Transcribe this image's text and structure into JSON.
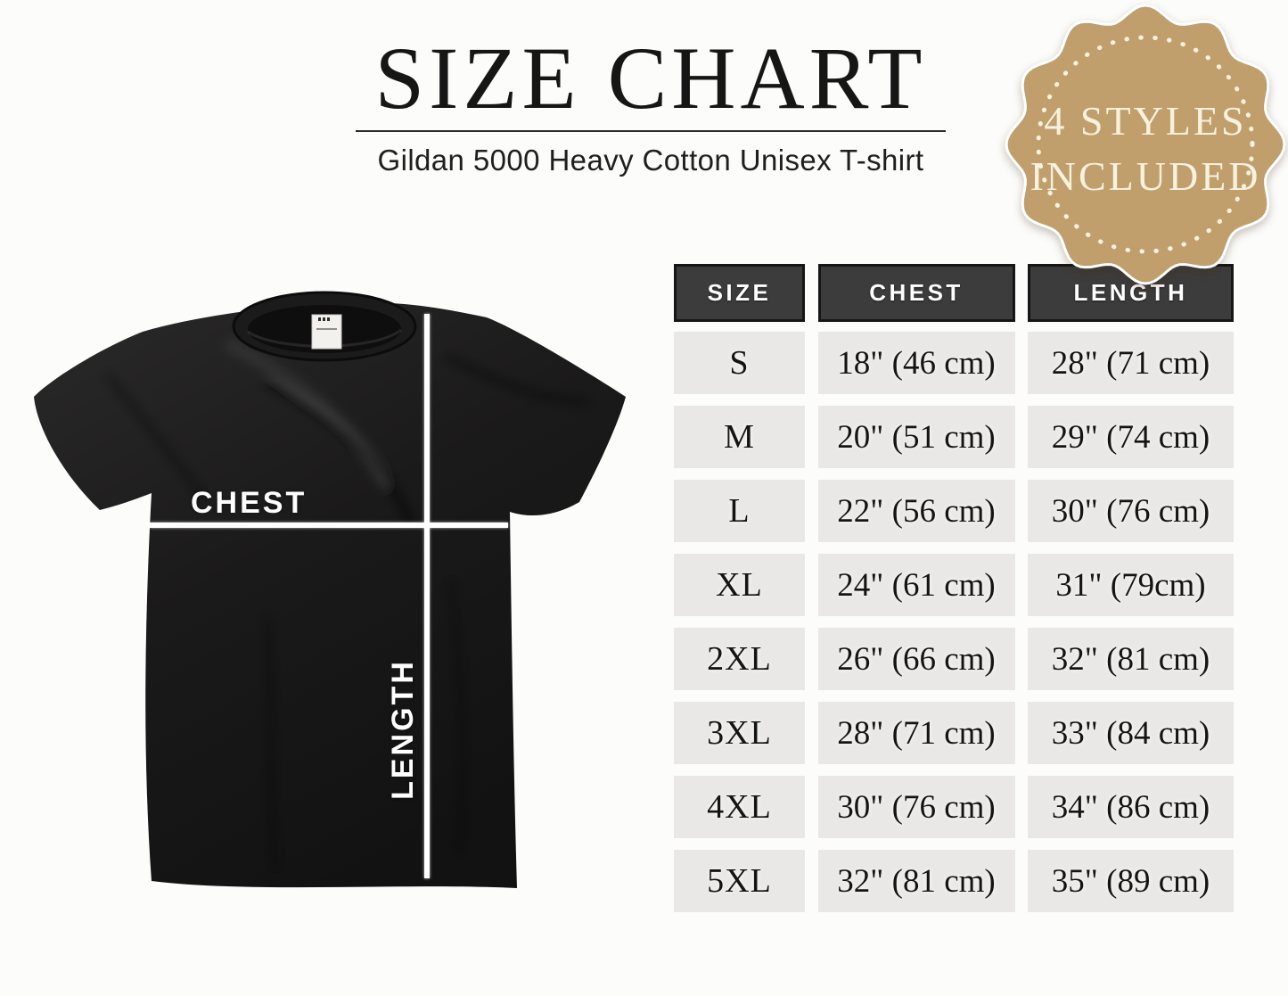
{
  "header": {
    "title": "SIZE CHART",
    "subtitle": "Gildan 5000 Heavy Cotton Unisex T-shirt"
  },
  "badge": {
    "line1": "4 STYLES",
    "line2": "INCLUDED",
    "bg_color": "#c19f6c",
    "dot_color": "#f7f1de",
    "text_color": "#f7f1de"
  },
  "shirt": {
    "chest_label": "CHEST",
    "length_label": "LENGTH"
  },
  "table": {
    "headers": [
      "SIZE",
      "CHEST",
      "LENGTH"
    ],
    "rows": [
      [
        "S",
        "18\" (46 cm)",
        "28\" (71 cm)"
      ],
      [
        "M",
        "20\" (51 cm)",
        "29\" (74 cm)"
      ],
      [
        "L",
        "22\" (56 cm)",
        "30\" (76 cm)"
      ],
      [
        "XL",
        "24\" (61 cm)",
        "31\" (79cm)"
      ],
      [
        "2XL",
        "26\" (66 cm)",
        "32\" (81 cm)"
      ],
      [
        "3XL",
        "28\" (71 cm)",
        "33\" (84 cm)"
      ],
      [
        "4XL",
        "30\" (76 cm)",
        "34\" (86 cm)"
      ],
      [
        "5XL",
        "32\" (81 cm)",
        "35\" (89 cm)"
      ]
    ]
  },
  "chart_data": {
    "type": "table",
    "title": "SIZE CHART",
    "subtitle": "Gildan 5000 Heavy Cotton Unisex T-shirt",
    "columns": [
      "SIZE",
      "CHEST",
      "LENGTH"
    ],
    "units": "inches (centimeters)",
    "rows": [
      {
        "size": "S",
        "chest_in": 18,
        "chest_cm": 46,
        "length_in": 28,
        "length_cm": 71
      },
      {
        "size": "M",
        "chest_in": 20,
        "chest_cm": 51,
        "length_in": 29,
        "length_cm": 74
      },
      {
        "size": "L",
        "chest_in": 22,
        "chest_cm": 56,
        "length_in": 30,
        "length_cm": 76
      },
      {
        "size": "XL",
        "chest_in": 24,
        "chest_cm": 61,
        "length_in": 31,
        "length_cm": 79
      },
      {
        "size": "2XL",
        "chest_in": 26,
        "chest_cm": 66,
        "length_in": 32,
        "length_cm": 81
      },
      {
        "size": "3XL",
        "chest_in": 28,
        "chest_cm": 71,
        "length_in": 33,
        "length_cm": 84
      },
      {
        "size": "4XL",
        "chest_in": 30,
        "chest_cm": 76,
        "length_in": 34,
        "length_cm": 86
      },
      {
        "size": "5XL",
        "chest_in": 32,
        "chest_cm": 81,
        "length_in": 35,
        "length_cm": 89
      }
    ]
  }
}
